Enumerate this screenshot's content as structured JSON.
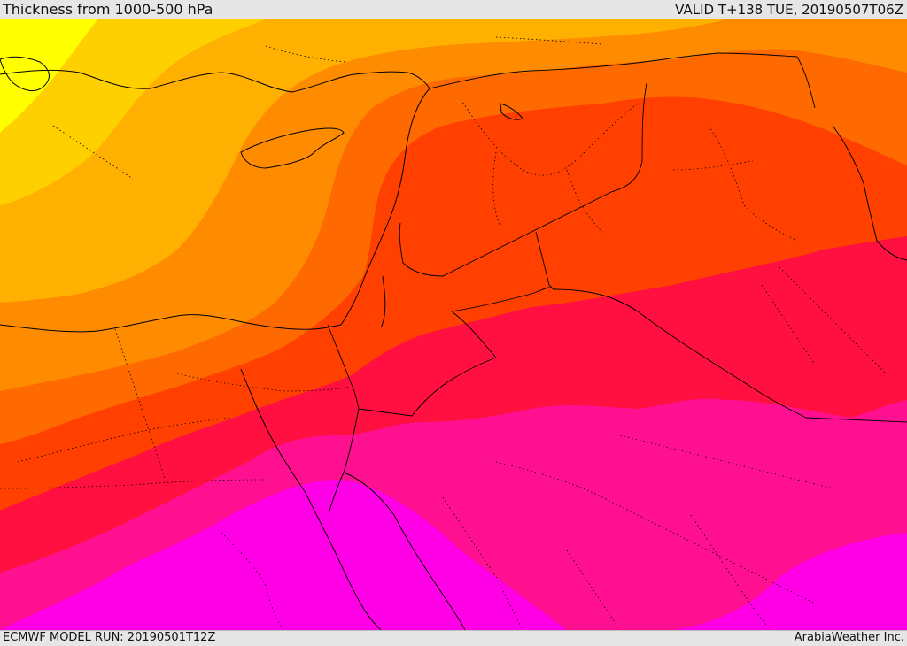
{
  "header": {
    "title": "Thickness from 1000-500 hPa",
    "valid": "VALID T+138 TUE, 20190507T06Z"
  },
  "footer": {
    "model_run": "ECMWF MODEL RUN: 20190501T12Z",
    "credit": "ArabiaWeather Inc."
  },
  "colors": {
    "yellow": "#ffff00",
    "gold": "#ffd000",
    "amber": "#ffb000",
    "orange": "#ff8c00",
    "dark_orange": "#ff6a00",
    "red_orange": "#ff4000",
    "red": "#ff1040",
    "hot_pink": "#ff1090",
    "magenta": "#ff00cc",
    "bright_magenta": "#ff00e6",
    "coastline": "#000000",
    "border": "#000000"
  }
}
